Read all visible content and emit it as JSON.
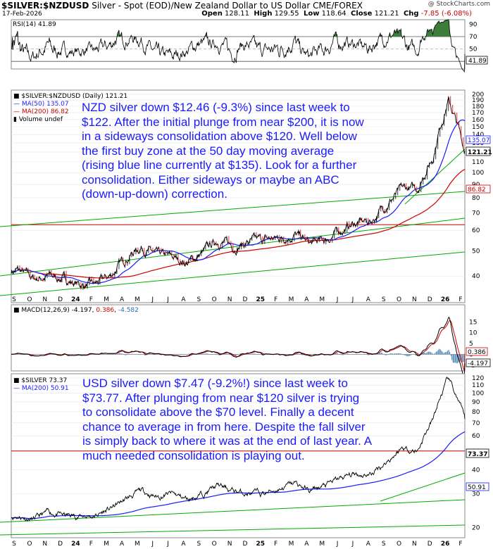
{
  "header": {
    "symbol": "$SILVER:$NZDUSD",
    "description": "Silver - Spot (EOD)/New Zealand Dollar to US Dollar",
    "exchange": "CME/FOREX",
    "date": "17-Feb-2026",
    "brand": "@ StockCharts.com",
    "open_label": "Open",
    "open": "128.11",
    "high_label": "High",
    "high": "129.55",
    "low_label": "Low",
    "low": "118.64",
    "close_label": "Close",
    "close": "121.21",
    "chg_label": "Chg",
    "chg": "-7.85 (-6.08%)"
  },
  "colors": {
    "price": "#000000",
    "ma50": "#1a1aff",
    "ma200": "#cc0000",
    "trend": "#00aa00",
    "rsi_fill": "#3c7d3c",
    "macd_hist": "#2e6ea6",
    "annotation": "#1a1aff"
  },
  "chart_data": [
    {
      "type": "line",
      "panel": "rsi",
      "legend": "RSI(14) 41.89",
      "yticks": [
        90,
        70,
        50,
        30
      ],
      "ylim": [
        20,
        95
      ],
      "overbought": 70,
      "oversold": 30,
      "last_label": "41.89",
      "series": [
        {
          "name": "RSI(14)",
          "last": 41.89
        }
      ]
    },
    {
      "type": "line",
      "panel": "nzd_price",
      "legend": {
        "symbol": "$SILVER:$NZDUSD (Daily) 121.21",
        "ma50": "MA(50) 135.07",
        "ma200": "MA(200) 86.82",
        "volume": "Volume undef"
      },
      "yscale": "log",
      "yticks": [
        200,
        190,
        180,
        170,
        160,
        150,
        140,
        130,
        120,
        110,
        100,
        90,
        80,
        70,
        60,
        50,
        40
      ],
      "ylim": [
        32,
        205
      ],
      "xticks": [
        "S",
        "O",
        "N",
        "D",
        "24",
        "F",
        "M",
        "A",
        "M",
        "J",
        "J",
        "A",
        "S",
        "O",
        "N",
        "D",
        "25",
        "F",
        "M",
        "A",
        "M",
        "J",
        "J",
        "A",
        "S",
        "O",
        "N",
        "D",
        "26",
        "F"
      ],
      "price_points": [
        [
          "2023-09",
          42
        ],
        [
          "2023-10",
          39
        ],
        [
          "2023-11",
          40
        ],
        [
          "2023-12",
          39
        ],
        [
          "2024-01",
          37
        ],
        [
          "2024-02",
          37
        ],
        [
          "2024-03",
          40
        ],
        [
          "2024-04",
          47
        ],
        [
          "2024-05",
          52
        ],
        [
          "2024-06",
          48
        ],
        [
          "2024-07",
          47
        ],
        [
          "2024-08",
          45
        ],
        [
          "2024-09",
          49
        ],
        [
          "2024-10",
          55
        ],
        [
          "2024-11",
          52
        ],
        [
          "2024-12",
          54
        ],
        [
          "2025-01",
          55
        ],
        [
          "2025-02",
          56
        ],
        [
          "2025-03",
          58
        ],
        [
          "2025-04",
          53
        ],
        [
          "2025-05",
          55
        ],
        [
          "2025-06",
          60
        ],
        [
          "2025-07",
          64
        ],
        [
          "2025-08",
          65
        ],
        [
          "2025-09",
          76
        ],
        [
          "2025-10",
          86
        ],
        [
          "2025-11",
          87
        ],
        [
          "2025-12",
          115
        ],
        [
          "2026-01",
          190
        ],
        [
          "2026-02-17",
          121.21
        ]
      ],
      "ma50_last": 135.07,
      "ma200_last": 86.82,
      "close_last": 121.21,
      "horizontal_line": 63,
      "last_labels": [
        "135.07",
        "121.21",
        "86.82"
      ]
    },
    {
      "type": "line",
      "panel": "macd",
      "legend": {
        "title": "MACD(12,26,9)",
        "macd": "-4.197",
        "signal": "0.386",
        "hist": "-4.582"
      },
      "yticks": [
        15,
        10,
        5,
        0,
        -5
      ],
      "ylim": [
        -7,
        19
      ],
      "last_labels": [
        "0.386",
        "-4.197"
      ]
    },
    {
      "type": "line",
      "panel": "usd_price",
      "legend": {
        "symbol": "$SILVER 73.37",
        "ma200": "MA(200) 50.91"
      },
      "yticks": [
        120,
        110,
        100,
        90,
        80,
        70,
        60,
        50,
        40,
        30,
        20
      ],
      "ylim": [
        18,
        124
      ],
      "xticks": [
        "S",
        "O",
        "N",
        "D",
        "24",
        "F",
        "M",
        "A",
        "M",
        "J",
        "J",
        "A",
        "S",
        "O",
        "N",
        "D",
        "25",
        "F",
        "M",
        "A",
        "M",
        "J",
        "J",
        "A",
        "S",
        "O",
        "N",
        "D",
        "26",
        "F"
      ],
      "price_points": [
        [
          "2023-09",
          23
        ],
        [
          "2023-10",
          22
        ],
        [
          "2023-11",
          24
        ],
        [
          "2023-12",
          23
        ],
        [
          "2024-01",
          23
        ],
        [
          "2024-02",
          23
        ],
        [
          "2024-03",
          25
        ],
        [
          "2024-04",
          28
        ],
        [
          "2024-05",
          31
        ],
        [
          "2024-06",
          29
        ],
        [
          "2024-07",
          30
        ],
        [
          "2024-08",
          28
        ],
        [
          "2024-09",
          30
        ],
        [
          "2024-10",
          33
        ],
        [
          "2024-11",
          31
        ],
        [
          "2024-12",
          30
        ],
        [
          "2025-01",
          30
        ],
        [
          "2025-02",
          32
        ],
        [
          "2025-03",
          34
        ],
        [
          "2025-04",
          31
        ],
        [
          "2025-05",
          33
        ],
        [
          "2025-06",
          36
        ],
        [
          "2025-07",
          38
        ],
        [
          "2025-08",
          38
        ],
        [
          "2025-09",
          44
        ],
        [
          "2025-10",
          52
        ],
        [
          "2025-11",
          50
        ],
        [
          "2025-12",
          72
        ],
        [
          "2026-01",
          118
        ],
        [
          "2026-02-17",
          73.37
        ]
      ],
      "ma200_last": 50.91,
      "close_last": 73.37,
      "horizontal_line": 50,
      "last_labels": [
        "73.37",
        "50.91"
      ]
    }
  ],
  "annotations": {
    "nzd": [
      "NZD silver down $12.46 (-9.3%) since last week to",
      "$122. After the initial plunge from near $200, it is now",
      "in a sideways consolidation above $120. Well below",
      "the first buy zone at the 50 day moving average",
      "(rising blue line currently at $135). Look for a further",
      "consolidation. Either sideways or maybe an ABC",
      "(down-up-down) correction."
    ],
    "usd": [
      "USD silver down $7.47 (-9.2%!) since last week to",
      "$73.77. After plunging from near $120 silver is trying",
      "to consolidate above the $70 level. Finally a decent",
      "chance to average in from here. Despite the fall silver",
      "is simply back to where it was at the end of last year. A",
      "much needed consolidation is playing out."
    ]
  }
}
